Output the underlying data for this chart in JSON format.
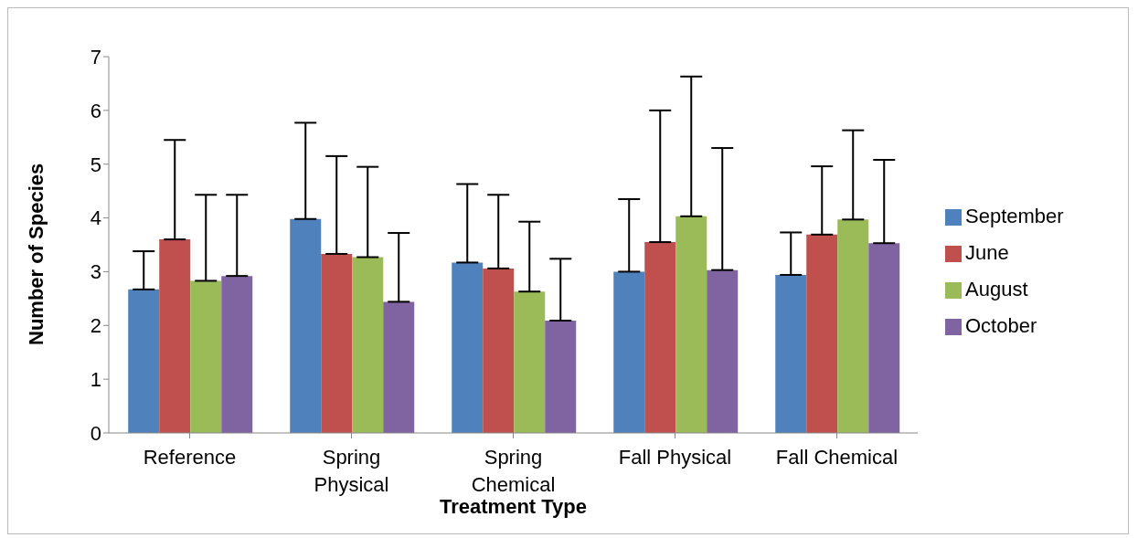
{
  "chart_data": {
    "type": "bar",
    "xlabel": "Treatment Type",
    "ylabel": "Number of Species",
    "categories": [
      "Reference",
      "Spring Physical",
      "Spring Chemical",
      "Fall Physical",
      "Fall Chemical"
    ],
    "series": [
      {
        "name": "September",
        "color": "#4f81bd",
        "values": [
          2.67,
          3.98,
          3.17,
          3.0,
          2.94
        ],
        "errors": [
          [
            2.67,
            3.38
          ],
          [
            3.98,
            5.77
          ],
          [
            3.17,
            4.63
          ],
          [
            3.0,
            4.35
          ],
          [
            2.94,
            3.73
          ]
        ]
      },
      {
        "name": "June",
        "color": "#c0504d",
        "values": [
          3.6,
          3.33,
          3.06,
          3.55,
          3.69
        ],
        "errors": [
          [
            3.6,
            5.45
          ],
          [
            3.33,
            5.15
          ],
          [
            3.06,
            4.43
          ],
          [
            3.55,
            6.0
          ],
          [
            3.69,
            4.96
          ]
        ]
      },
      {
        "name": "August",
        "color": "#9bbb59",
        "values": [
          2.83,
          3.27,
          2.63,
          4.03,
          3.97
        ],
        "errors": [
          [
            2.83,
            4.43
          ],
          [
            3.27,
            4.95
          ],
          [
            2.63,
            3.93
          ],
          [
            4.03,
            6.63
          ],
          [
            3.97,
            5.63
          ]
        ]
      },
      {
        "name": "October",
        "color": "#8064a2",
        "values": [
          2.92,
          2.44,
          2.09,
          3.03,
          3.53
        ],
        "errors": [
          [
            2.92,
            4.43
          ],
          [
            2.44,
            3.72
          ],
          [
            2.09,
            3.24
          ],
          [
            3.03,
            5.3
          ],
          [
            3.53,
            5.08
          ]
        ]
      }
    ],
    "ylim": [
      0,
      7
    ],
    "yticks": [
      0,
      1,
      2,
      3,
      4,
      5,
      6,
      7
    ],
    "grid": false,
    "legend": "right"
  }
}
